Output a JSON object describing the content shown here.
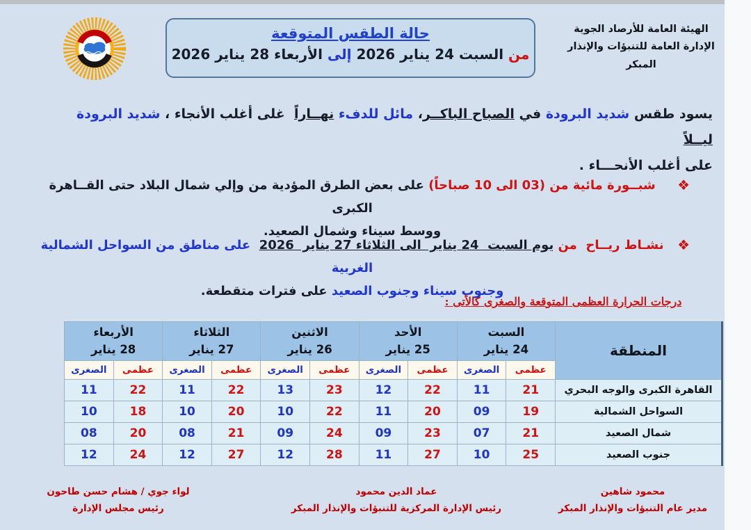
{
  "org": {
    "line1": "الهيئة العامة للأرصاد الجوية",
    "line2": "الإدارة العامة للتنبؤات والإنذار المبكر"
  },
  "logo": {
    "label": "EMA"
  },
  "title_box": {
    "title": "حالة الطقس المتوقعة",
    "subtitle": [
      {
        "t": "من ",
        "c": "red"
      },
      {
        "t": "السبت 24 يناير 2026 ",
        "c": "dark"
      },
      {
        "t": "إلى ",
        "c": "blue"
      },
      {
        "t": "الأربعاء 28 يناير 2026",
        "c": "dark"
      }
    ]
  },
  "paragraphs": {
    "bullet_glyph": "❖",
    "intro": [
      {
        "t": "يسود طقس ",
        "c": "dark"
      },
      {
        "t": "شديد البرودة",
        "c": "blue"
      },
      {
        "t": " في ",
        "c": "dark"
      },
      {
        "t": "الصباح الباكــر",
        "c": "dark",
        "u": true
      },
      {
        "t": "، ",
        "c": "dark"
      },
      {
        "t": "مائل للدفء ",
        "c": "blue"
      },
      {
        "t": "نهــاراً",
        "c": "dark",
        "u": true
      },
      {
        "t": "  غلى أغلب الأنجاء ، ",
        "c": "dark"
      },
      {
        "t": "شديد البرودة ",
        "c": "blue"
      },
      {
        "t": "ليــلاً",
        "c": "dark",
        "u": true
      },
      {
        "t": "\nعلى أغلب الأنحـــاء .",
        "c": "dark"
      }
    ],
    "bullet1": [
      {
        "t": "شبــورة مائية من (03 الى 10 صباحاً)",
        "c": "red"
      },
      {
        "t": " على بعض الطرق المؤدية من وإلي شمال البلاد حتى القــاهرة الكبرى\nووسط سيناء وشمال الصعيد.",
        "c": "dark"
      }
    ],
    "bullet2": [
      {
        "t": "نشـاط ريــاح  من ",
        "c": "red"
      },
      {
        "t": "يوم السبت  24 يناير  الى الثلاثاء 27 يناير  2026",
        "c": "dark",
        "u": true
      },
      {
        "t": "  على مناطق من السواحل الشمالية الغربية\nوجنوب سيناء وجنوب الصعيد",
        "c": "blue"
      },
      {
        "t": " على فترات متقطعة.",
        "c": "dark"
      }
    ]
  },
  "table": {
    "caption": "درجات الحرارة العظمى المتوقعة والصغرى كالأتى :",
    "region_header": "المنطقة",
    "max_label": "عظمى",
    "min_label": "الصغرى",
    "days": [
      {
        "name": "السبت",
        "date": "24 يناير"
      },
      {
        "name": "الأحد",
        "date": "25 يناير"
      },
      {
        "name": "الاثنين",
        "date": "26 يناير"
      },
      {
        "name": "الثلاثاء",
        "date": "27 يناير"
      },
      {
        "name": "الأربعاء",
        "date": "28 يناير"
      }
    ],
    "rows": [
      {
        "region": "القاهرة الكبرى والوجه البحري",
        "temps": [
          {
            "max": "21",
            "min": "11"
          },
          {
            "max": "22",
            "min": "12"
          },
          {
            "max": "23",
            "min": "13"
          },
          {
            "max": "22",
            "min": "11"
          },
          {
            "max": "22",
            "min": "11"
          }
        ]
      },
      {
        "region": "السواحل الشمالية",
        "temps": [
          {
            "max": "19",
            "min": "09"
          },
          {
            "max": "20",
            "min": "11"
          },
          {
            "max": "22",
            "min": "10"
          },
          {
            "max": "20",
            "min": "10"
          },
          {
            "max": "18",
            "min": "10"
          }
        ]
      },
      {
        "region": "شمال الصعيد",
        "temps": [
          {
            "max": "21",
            "min": "07"
          },
          {
            "max": "23",
            "min": "09"
          },
          {
            "max": "24",
            "min": "09"
          },
          {
            "max": "21",
            "min": "08"
          },
          {
            "max": "20",
            "min": "08"
          }
        ]
      },
      {
        "region": "جنوب الصعيد",
        "temps": [
          {
            "max": "25",
            "min": "10"
          },
          {
            "max": "27",
            "min": "11"
          },
          {
            "max": "28",
            "min": "12"
          },
          {
            "max": "27",
            "min": "12"
          },
          {
            "max": "24",
            "min": "12"
          }
        ]
      }
    ]
  },
  "signatures": [
    {
      "name": "محمود شاهين",
      "title": "مدير عام التنبؤات والإنذار المبكر"
    },
    {
      "name": "عماد الدين محمود",
      "title": "رئيس الإدارة المركزية للتنبؤات والإنذار المبكر"
    },
    {
      "name": "لواء جوي / هشام حسن طاحون",
      "title": "رئيس مجلس الإدارة"
    }
  ],
  "colors": {
    "accent_red": "#cf1212",
    "accent_blue": "#2036cc",
    "doc_background": "#d4e0ed",
    "table_header_bg": "#9cc2e5",
    "table_subheader_bg": "#fdf8ec",
    "table_row_bg": "#ddeef6"
  }
}
